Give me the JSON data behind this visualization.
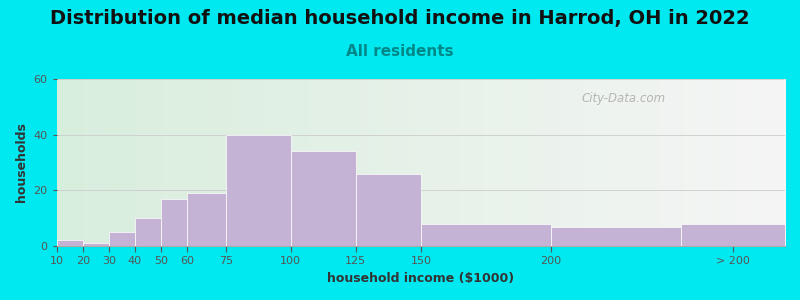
{
  "title": "Distribution of median household income in Harrod, OH in 2022",
  "subtitle": "All residents",
  "xlabel": "household income ($1000)",
  "ylabel": "households",
  "tick_positions": [
    10,
    20,
    30,
    40,
    50,
    60,
    75,
    100,
    125,
    150,
    200,
    250,
    290
  ],
  "tick_labels": [
    "10",
    "20",
    "30",
    "40",
    "50",
    "60",
    "75",
    "100",
    "125",
    "150",
    "200",
    "",
    "> 200"
  ],
  "bar_lefts": [
    10,
    20,
    30,
    40,
    50,
    60,
    75,
    100,
    125,
    150,
    200,
    250
  ],
  "bar_rights": [
    20,
    30,
    40,
    50,
    60,
    75,
    100,
    125,
    150,
    200,
    250,
    290
  ],
  "bar_values": [
    2,
    1,
    5,
    10,
    17,
    19,
    40,
    34,
    26,
    8,
    7,
    8
  ],
  "bar_color": "#c5b3d5",
  "bar_edge_color": "#ffffff",
  "ylim": [
    0,
    60
  ],
  "yticks": [
    0,
    20,
    40,
    60
  ],
  "xlim": [
    10,
    290
  ],
  "background_outer": "#00e8f0",
  "plot_bg_left_color": "#d8eedd",
  "plot_bg_right_color": "#f5f5f5",
  "title_fontsize": 14,
  "subtitle_fontsize": 11,
  "subtitle_color": "#008888",
  "axis_label_fontsize": 9,
  "tick_fontsize": 8,
  "watermark_text": "City-Data.com",
  "watermark_color": "#aaaaaa"
}
